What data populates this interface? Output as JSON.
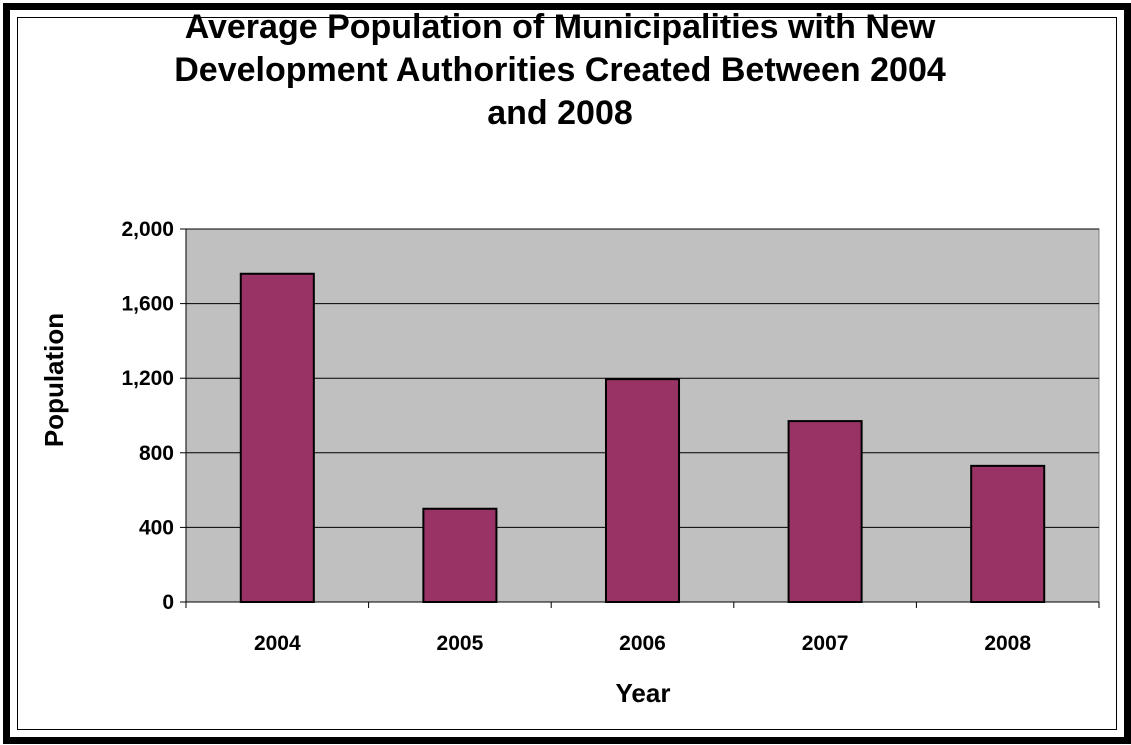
{
  "chart_data": {
    "type": "bar",
    "title": "Average Population of Municipalities with New Development Authorities Created Between 2004 and 2008",
    "title_lines": [
      "Average Population of Municipalities with New",
      "Development Authorities Created Between 2004",
      "and 2008"
    ],
    "xlabel": "Year",
    "ylabel": "Population",
    "categories": [
      "2004",
      "2005",
      "2006",
      "2007",
      "2008"
    ],
    "values": [
      1760,
      500,
      1195,
      970,
      730
    ],
    "ylim": [
      0,
      2000
    ],
    "yticks": [
      0,
      400,
      800,
      1200,
      1600,
      2000
    ],
    "ytick_labels": [
      "0",
      "400",
      "800",
      "1,200",
      "1,600",
      "2,000"
    ],
    "grid": true,
    "legend": "none",
    "colors": {
      "bar_fill": "#993366",
      "plot_background": "#C0C0C0",
      "gridline": "#000000",
      "frame": "#000000"
    }
  }
}
